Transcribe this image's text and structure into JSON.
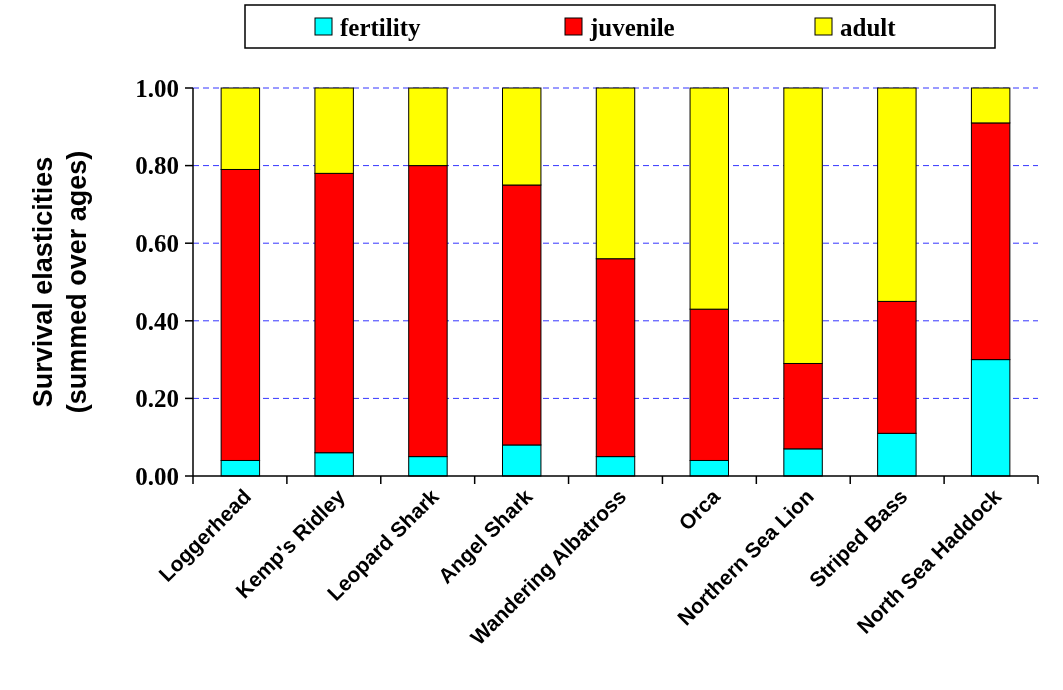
{
  "chart_data": {
    "type": "bar",
    "stacked": true,
    "ylabel": "Survival elasticities\n(summed over ages)",
    "categories": [
      "Loggerhead",
      "Kemp's Ridley",
      "Leopard Shark",
      "Angel Shark",
      "Wandering Albatross",
      "Orca",
      "Northern Sea Lion",
      "Striped Bass",
      "North Sea Haddock"
    ],
    "series": [
      {
        "name": "fertility",
        "color": "#00ffff",
        "values": [
          0.04,
          0.06,
          0.05,
          0.08,
          0.05,
          0.04,
          0.07,
          0.11,
          0.3
        ]
      },
      {
        "name": "juvenile",
        "color": "#ff0000",
        "values": [
          0.75,
          0.72,
          0.75,
          0.67,
          0.51,
          0.39,
          0.22,
          0.34,
          0.61
        ]
      },
      {
        "name": "adult",
        "color": "#ffff00",
        "values": [
          0.21,
          0.22,
          0.2,
          0.25,
          0.44,
          0.57,
          0.71,
          0.55,
          0.09
        ]
      }
    ],
    "ylim": [
      0,
      1
    ],
    "yticks": [
      {
        "value": 0,
        "label": "0.00"
      },
      {
        "value": 0.2,
        "label": "0.20"
      },
      {
        "value": 0.4,
        "label": "0.40"
      },
      {
        "value": 0.6,
        "label": "0.60"
      },
      {
        "value": 0.8,
        "label": "0.80"
      },
      {
        "value": 1,
        "label": "1.00"
      }
    ],
    "grid": "y",
    "legend": "top"
  }
}
